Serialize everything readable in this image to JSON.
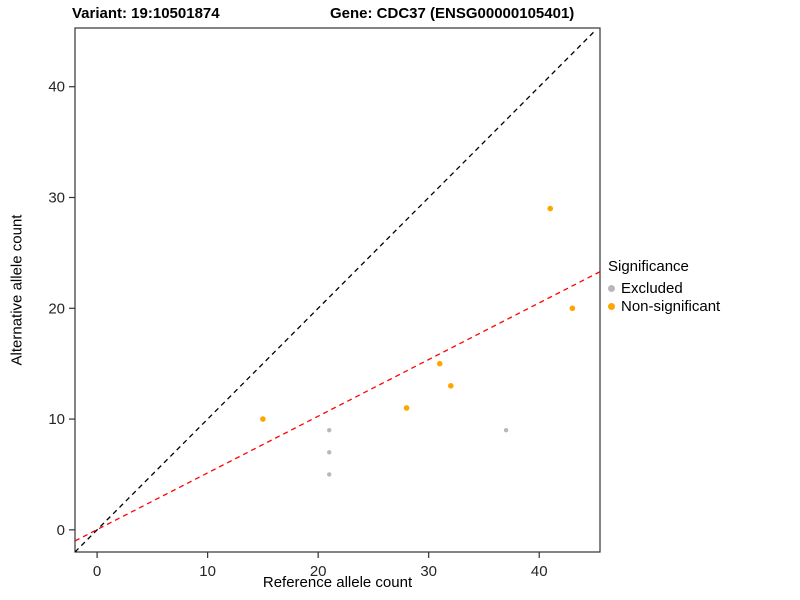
{
  "header": {
    "title_left": "Variant: 19:10501874",
    "title_right": "Gene: CDC37 (ENSG00000105401)"
  },
  "chart_data": {
    "type": "scatter",
    "xlabel": "Reference allele count",
    "ylabel": "Alternative allele count",
    "xlim": [
      -2,
      45.5
    ],
    "ylim": [
      -2,
      45.3
    ],
    "xticks": [
      0,
      10,
      20,
      30,
      40
    ],
    "yticks": [
      0,
      10,
      20,
      30,
      40
    ],
    "grid": false,
    "legend": {
      "title": "Significance",
      "position": "right",
      "entries": [
        {
          "label": "Excluded",
          "color": "#B8B8B8"
        },
        {
          "label": "Non-significant",
          "color": "#FFA500"
        }
      ]
    },
    "series": [
      {
        "name": "Excluded",
        "color": "#B8B8B8",
        "point_radius": 2.2,
        "points": [
          [
            21,
            9
          ],
          [
            21,
            7
          ],
          [
            21,
            5
          ],
          [
            37,
            9
          ]
        ]
      },
      {
        "name": "Non-significant",
        "color": "#FFA500",
        "point_radius": 2.8,
        "points": [
          [
            15,
            10
          ],
          [
            28,
            11
          ],
          [
            31,
            15
          ],
          [
            32,
            13
          ],
          [
            41,
            29
          ],
          [
            43,
            20
          ]
        ]
      }
    ],
    "lines": [
      {
        "name": "identity",
        "color": "#000000",
        "style": "dashed",
        "points": [
          [
            -2,
            -2
          ],
          [
            45,
            45
          ]
        ]
      },
      {
        "name": "regression",
        "color": "#FF0000",
        "style": "dashed",
        "points": [
          [
            -2,
            -1.0
          ],
          [
            45.5,
            23.3
          ]
        ]
      }
    ]
  }
}
